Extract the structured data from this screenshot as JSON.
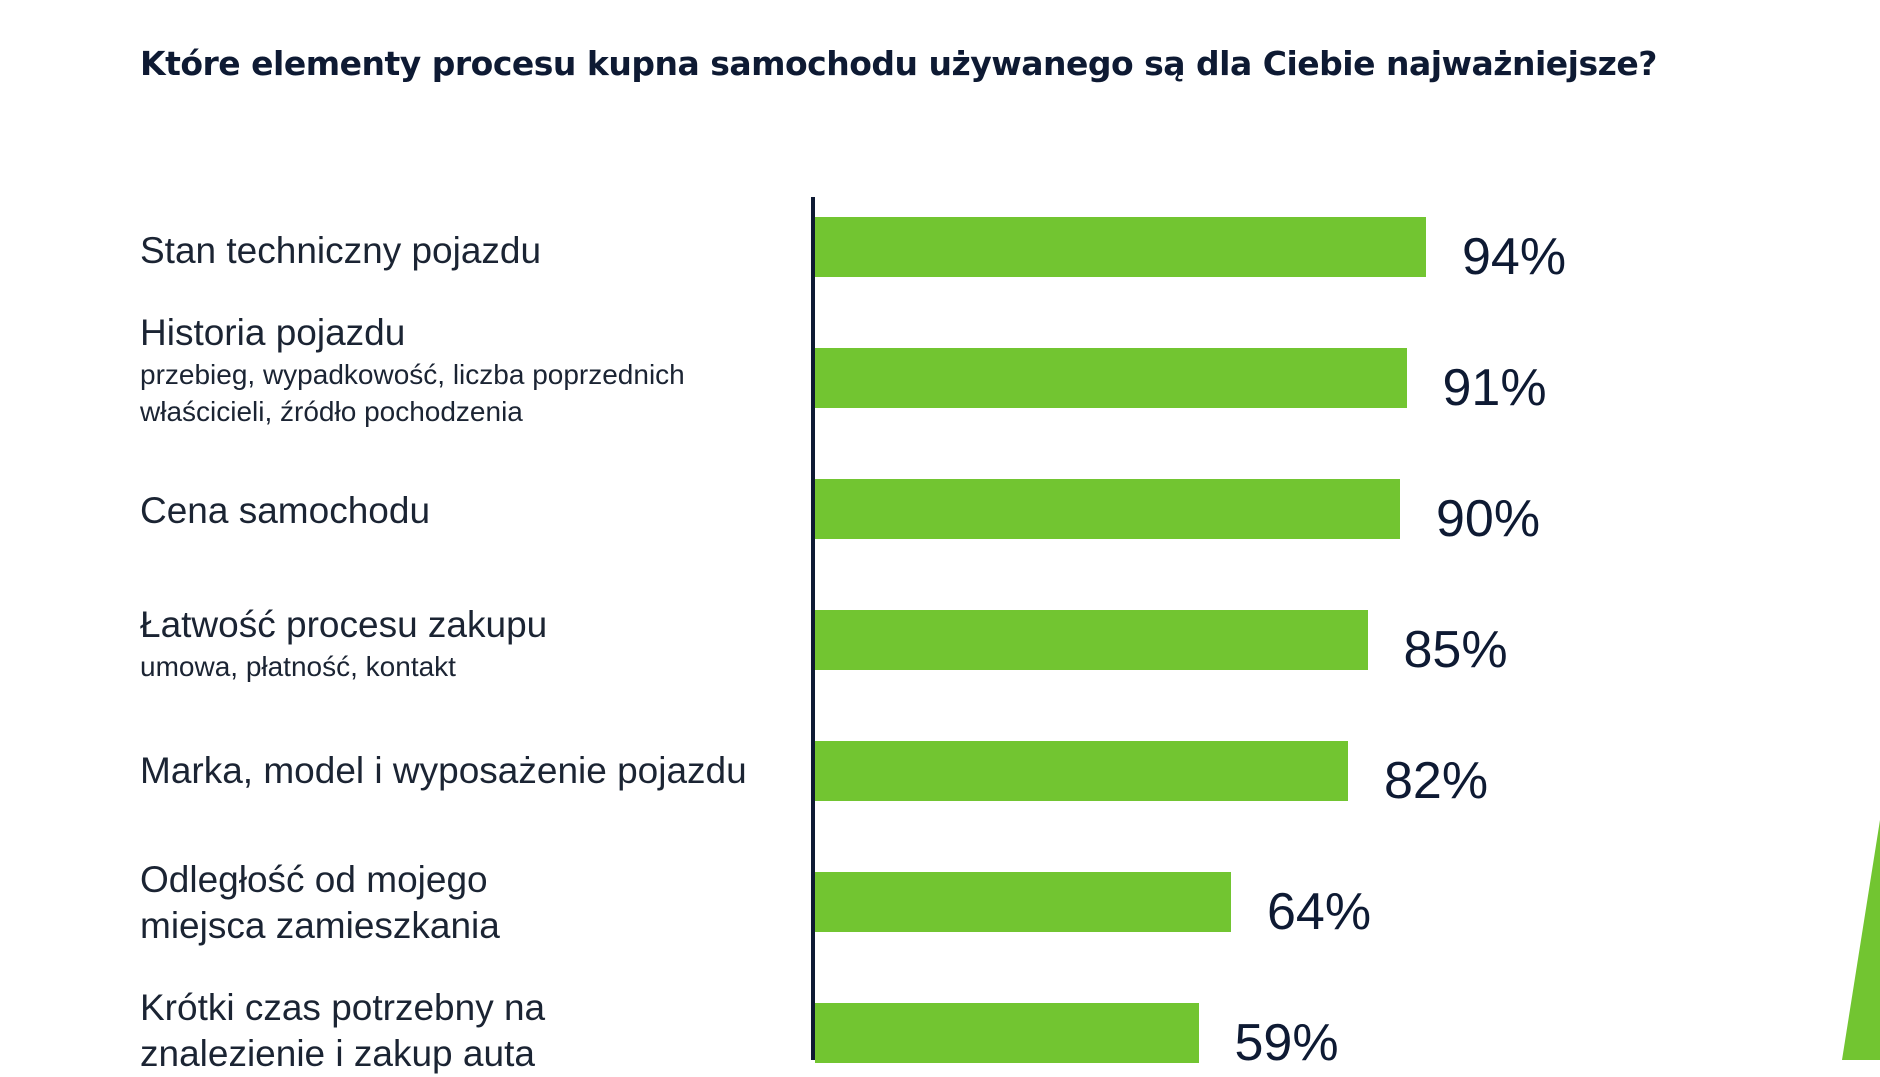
{
  "chart_data": {
    "type": "bar",
    "orientation": "horizontal",
    "title": "Które elementy procesu kupna samochodu używanego są dla Ciebie najważniejsze?",
    "categories": [
      {
        "label": "Stan techniczny pojazdu",
        "sub": []
      },
      {
        "label": "Historia pojazdu",
        "sub": [
          "przebieg, wypadkowość, liczba poprzednich",
          "właścicieli, źródło pochodzenia"
        ]
      },
      {
        "label": "Cena samochodu",
        "sub": []
      },
      {
        "label": "Łatwość procesu zakupu",
        "sub": [
          "umowa, płatność, kontakt"
        ]
      },
      {
        "label": "Marka, model i wyposażenie pojazdu",
        "sub": []
      },
      {
        "label": "Odległość od mojego miejsca zamieszkania",
        "lines": [
          "Odległość od mojego",
          "miejsca zamieszkania"
        ],
        "sub": []
      },
      {
        "label": "Krótki czas potrzebny na znalezienie i zakup auta",
        "lines": [
          "Krótki czas potrzebny na",
          "znalezienie i zakup auta"
        ],
        "sub": []
      }
    ],
    "values": [
      94,
      91,
      90,
      85,
      82,
      64,
      59
    ],
    "value_labels": [
      "94%",
      "91%",
      "90%",
      "85%",
      "82%",
      "64%",
      "59%"
    ],
    "xlim": [
      0,
      100
    ],
    "grid": false,
    "legend": "none",
    "bar_color": "#72c531",
    "axis_color": "#0e1a33"
  }
}
